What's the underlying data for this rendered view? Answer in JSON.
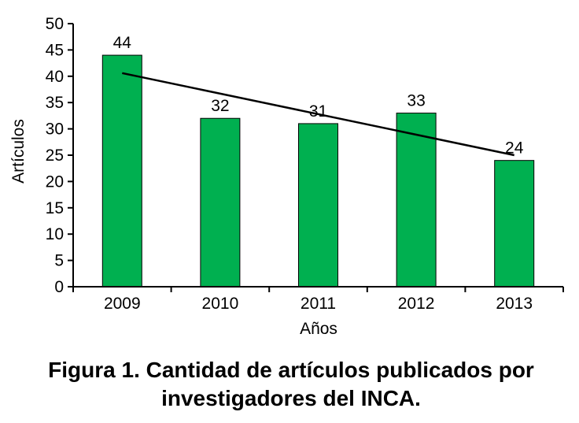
{
  "chart_data": {
    "type": "bar",
    "categories": [
      "2009",
      "2010",
      "2011",
      "2012",
      "2013"
    ],
    "values": [
      44,
      32,
      31,
      33,
      24
    ],
    "data_labels": [
      "44",
      "32",
      "31",
      "33",
      "24"
    ],
    "xlabel": "Años",
    "ylabel": "Artículos",
    "ylim": [
      0,
      50
    ],
    "yticks": [
      0,
      5,
      10,
      15,
      20,
      25,
      30,
      35,
      40,
      45,
      50
    ],
    "trendline": {
      "type": "linear",
      "start": 40.6,
      "end": 25.0
    },
    "grid": false,
    "legend": "none",
    "bar_color": "#00B050",
    "bar_edge_color": "#000000",
    "trendline_color": "#000000"
  },
  "caption": {
    "line1": "Figura 1. Cantidad de artículos publicados por",
    "line2": "investigadores del INCA."
  }
}
